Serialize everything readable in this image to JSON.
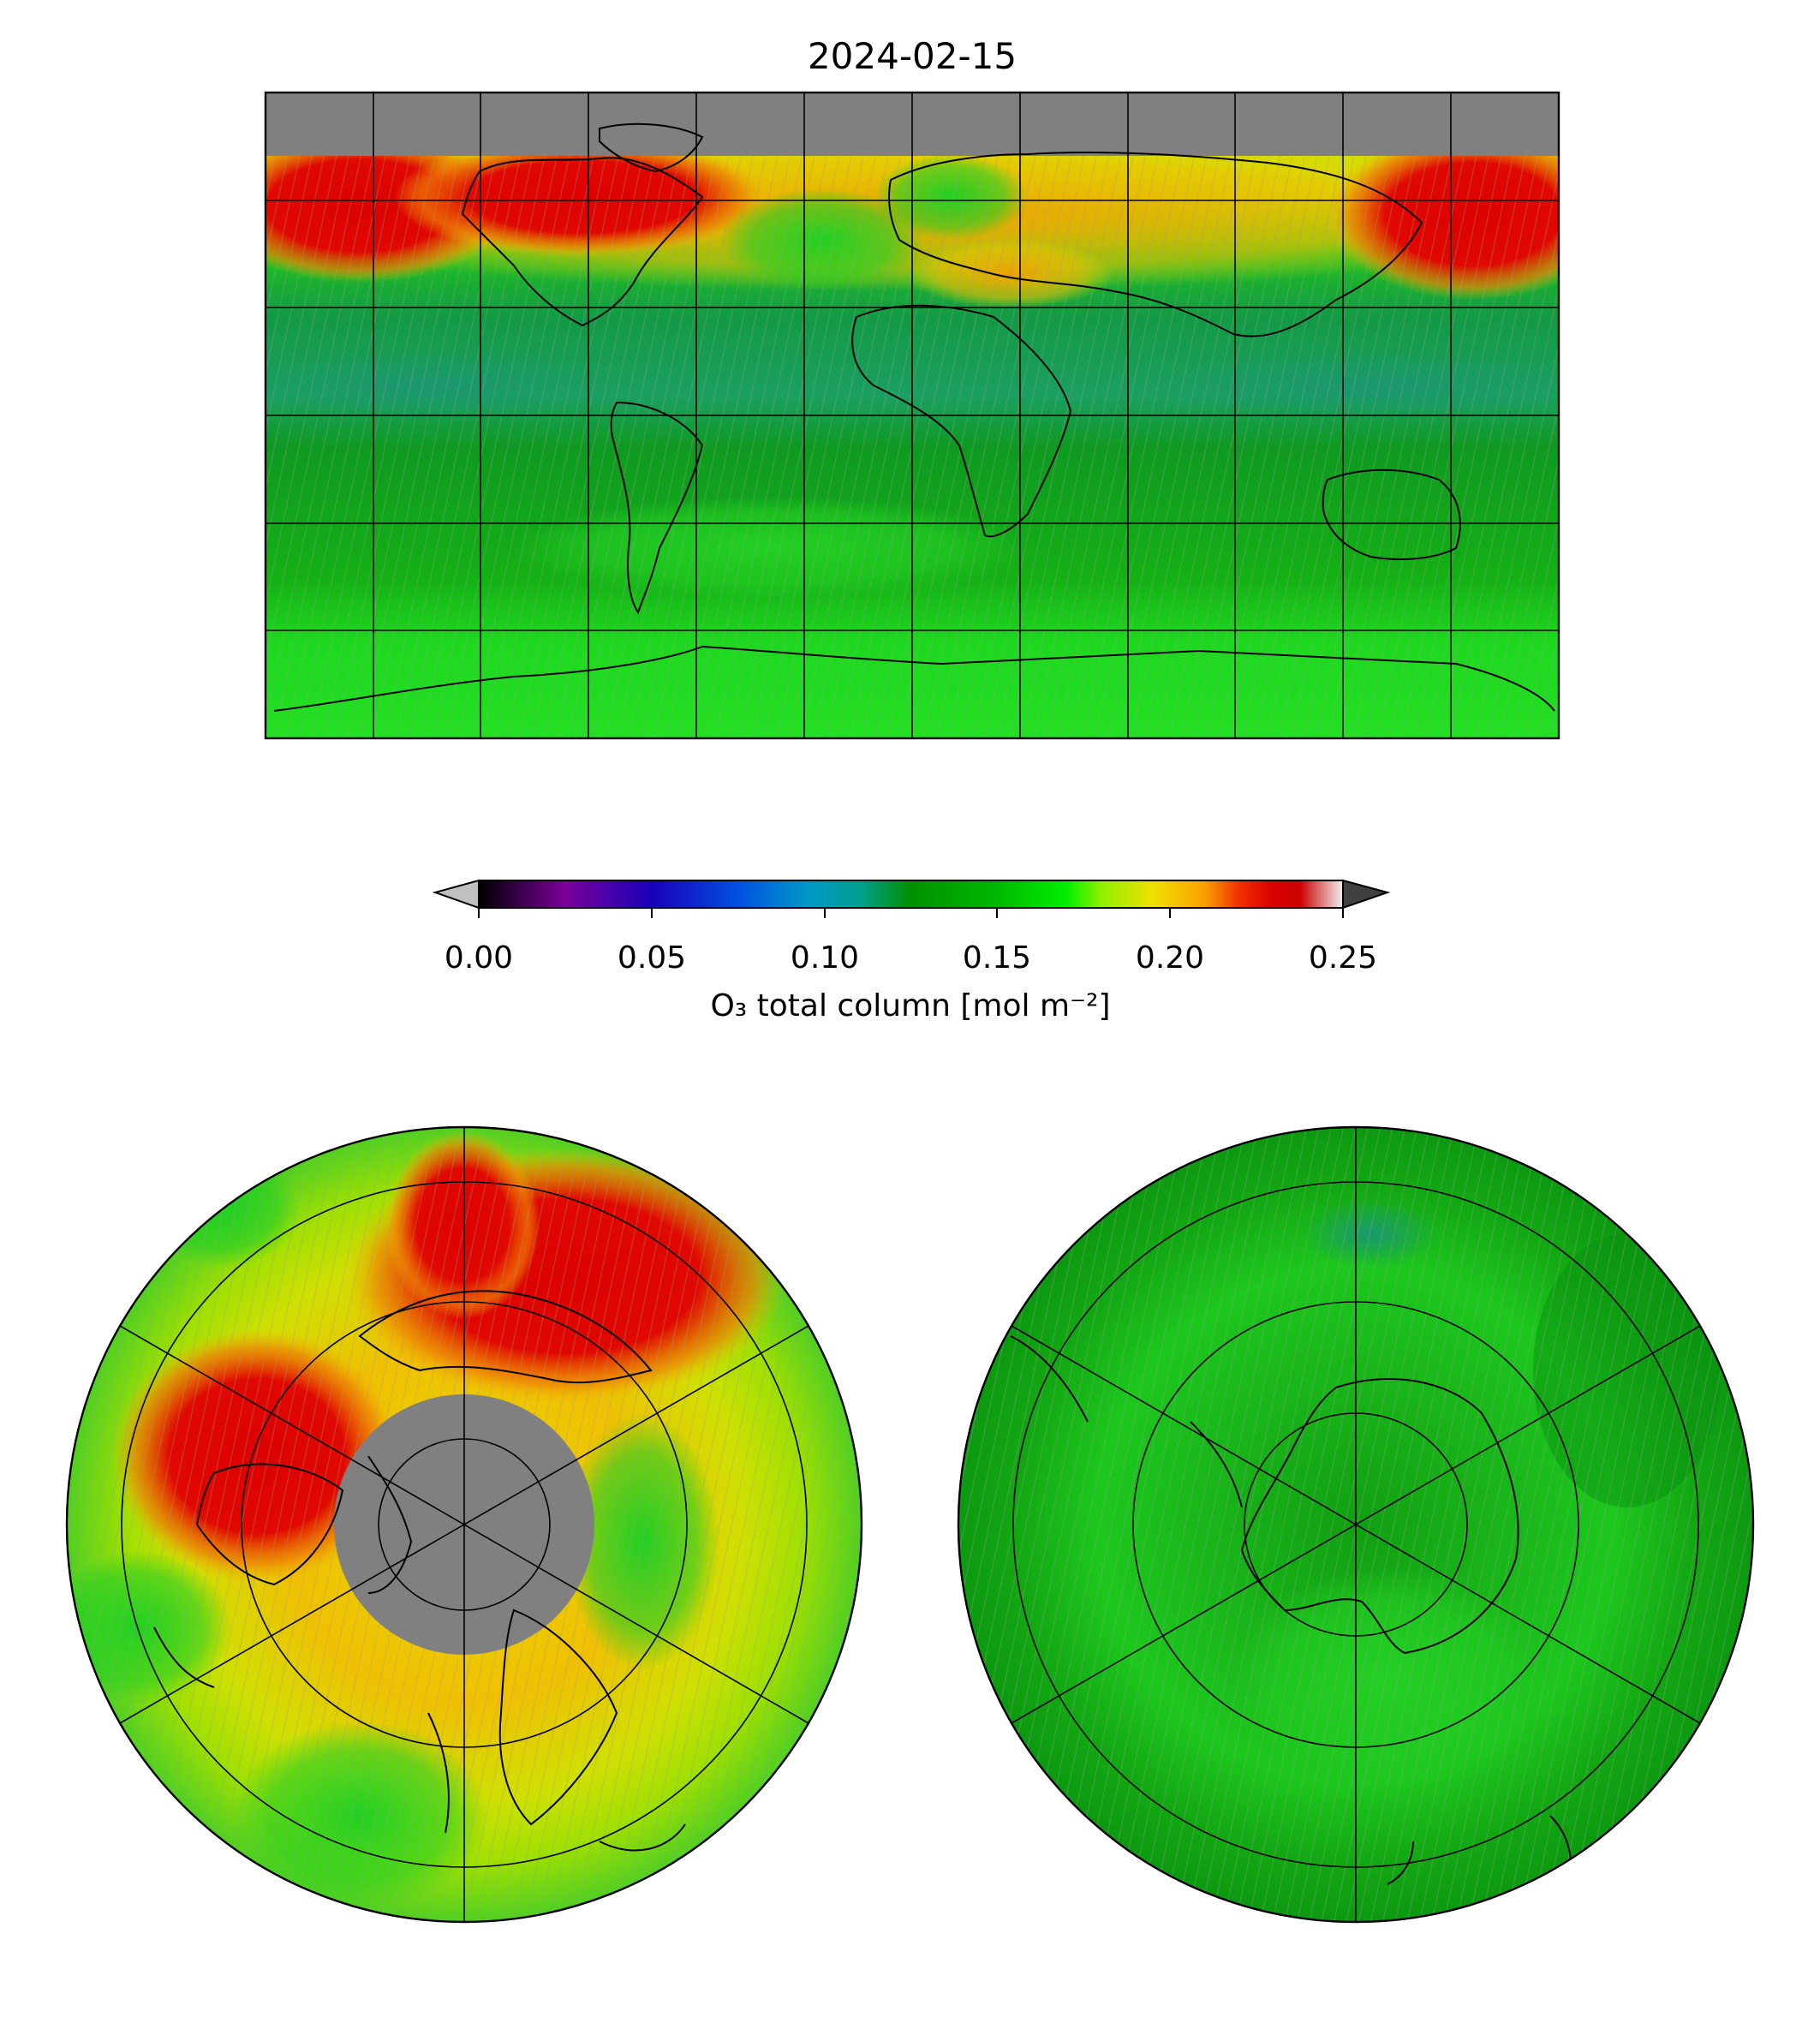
{
  "figure": {
    "title": "2024-02-15"
  },
  "colorbar": {
    "label": "O₃ total column [mol m⁻²]",
    "ticks": [
      "0.00",
      "0.05",
      "0.10",
      "0.15",
      "0.20",
      "0.25"
    ],
    "min": 0.0,
    "max": 0.25,
    "extend": "both",
    "colormap": "spectral-like: black, purple, blue, teal, green, bright green, yellow, orange, red, white",
    "under_color": "#c0c0c0",
    "over_color": "#404040"
  },
  "maps": [
    {
      "id": "global",
      "projection": "plate-carree",
      "no_data_color": "#808080",
      "regions": "red/orange over high northern latitudes (N. Pacific, Siberia, N. America), green tropics and southern hemisphere"
    },
    {
      "id": "north-polar",
      "projection": "north-polar-stereographic",
      "no_data_color": "#808080",
      "regions": "grey polar night cap; red ring over Siberia and Canada; yellow/green lower latitudes"
    },
    {
      "id": "south-polar",
      "projection": "south-polar-stereographic",
      "regions": "green everywhere, Antarctica outline in center"
    }
  ],
  "colors": {
    "no_data": "#808080",
    "green_dark": "#0a8f0a",
    "green": "#18b818",
    "green_bright": "#22e022",
    "yellow": "#e8e000",
    "orange": "#f0a000",
    "red": "#dd0000",
    "teal": "#1a9e6a"
  }
}
